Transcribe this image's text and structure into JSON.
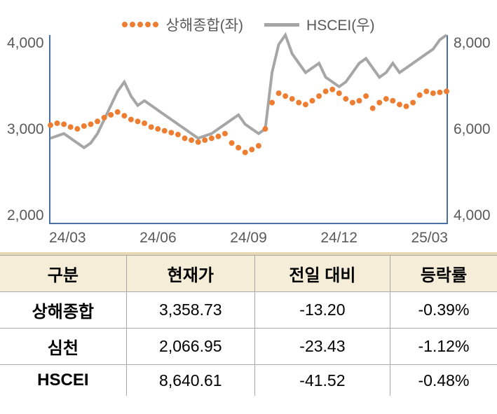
{
  "chart": {
    "type": "dual-axis-line-dotted",
    "legend": {
      "series1": {
        "label": "상해종합(좌)",
        "color": "#ED7D31",
        "style": "dotted"
      },
      "series2": {
        "label": "HSCEI(우)",
        "color": "#A6A6A6",
        "style": "line"
      }
    },
    "left_axis": {
      "min": 2000,
      "max": 4000,
      "ticks": [
        "4,000",
        "3,000",
        "2,000"
      ],
      "color": "#595959",
      "fontsize": 21
    },
    "right_axis": {
      "min": 4000,
      "max": 8000,
      "ticks": [
        "8,000",
        "6,000",
        "4,000"
      ],
      "color": "#595959",
      "fontsize": 21
    },
    "x_axis": {
      "labels": [
        "24/03",
        "24/06",
        "24/09",
        "24/12",
        "25/03"
      ],
      "color": "#595959",
      "fontsize": 21
    },
    "axis_line_color": "#4A6FA5",
    "series1_data": [
      3040,
      3060,
      3050,
      3020,
      3000,
      3030,
      3050,
      3080,
      3120,
      3150,
      3180,
      3140,
      3100,
      3080,
      3060,
      3020,
      3000,
      2980,
      2960,
      2940,
      2900,
      2880,
      2860,
      2880,
      2900,
      2920,
      2950,
      2850,
      2800,
      2750,
      2780,
      2820,
      3000,
      3280,
      3380,
      3350,
      3320,
      3280,
      3260,
      3300,
      3350,
      3400,
      3420,
      3380,
      3320,
      3280,
      3300,
      3350,
      3220,
      3280,
      3320,
      3300,
      3260,
      3240,
      3280,
      3360,
      3400,
      3380,
      3390,
      3400
    ],
    "series2_data": [
      5800,
      5850,
      5900,
      5800,
      5700,
      5600,
      5700,
      5900,
      6200,
      6500,
      6800,
      7000,
      6700,
      6500,
      6600,
      6500,
      6400,
      6300,
      6200,
      6100,
      6000,
      5900,
      5800,
      5850,
      5900,
      6000,
      6100,
      6200,
      6300,
      6100,
      6000,
      5900,
      6000,
      7200,
      7800,
      8000,
      7600,
      7400,
      7200,
      7300,
      7400,
      7100,
      7000,
      6900,
      7000,
      7200,
      7400,
      7500,
      7300,
      7100,
      7200,
      7400,
      7200,
      7300,
      7400,
      7500,
      7600,
      7700,
      7900,
      8000
    ],
    "series1_style": {
      "marker": "circle",
      "marker_size": 4,
      "color": "#ED7D31"
    },
    "series2_style": {
      "line_width": 4,
      "color": "#A6A6A6"
    },
    "background_color": "#ffffff"
  },
  "table": {
    "separator_color": "#E8D9B5",
    "header_bg": "#F5EDD8",
    "border_color": "#aaa",
    "columns": [
      "구분",
      "현재가",
      "전일 대비",
      "등락률"
    ],
    "rows": [
      {
        "label": "상해종합",
        "price": "3,358.73",
        "change": "-13.20",
        "pct": "-0.39%"
      },
      {
        "label": "심천",
        "price": "2,066.95",
        "change": "-23.43",
        "pct": "-1.12%"
      },
      {
        "label": "HSCEI",
        "price": "8,640.61",
        "change": "-41.52",
        "pct": "-0.48%"
      }
    ]
  }
}
